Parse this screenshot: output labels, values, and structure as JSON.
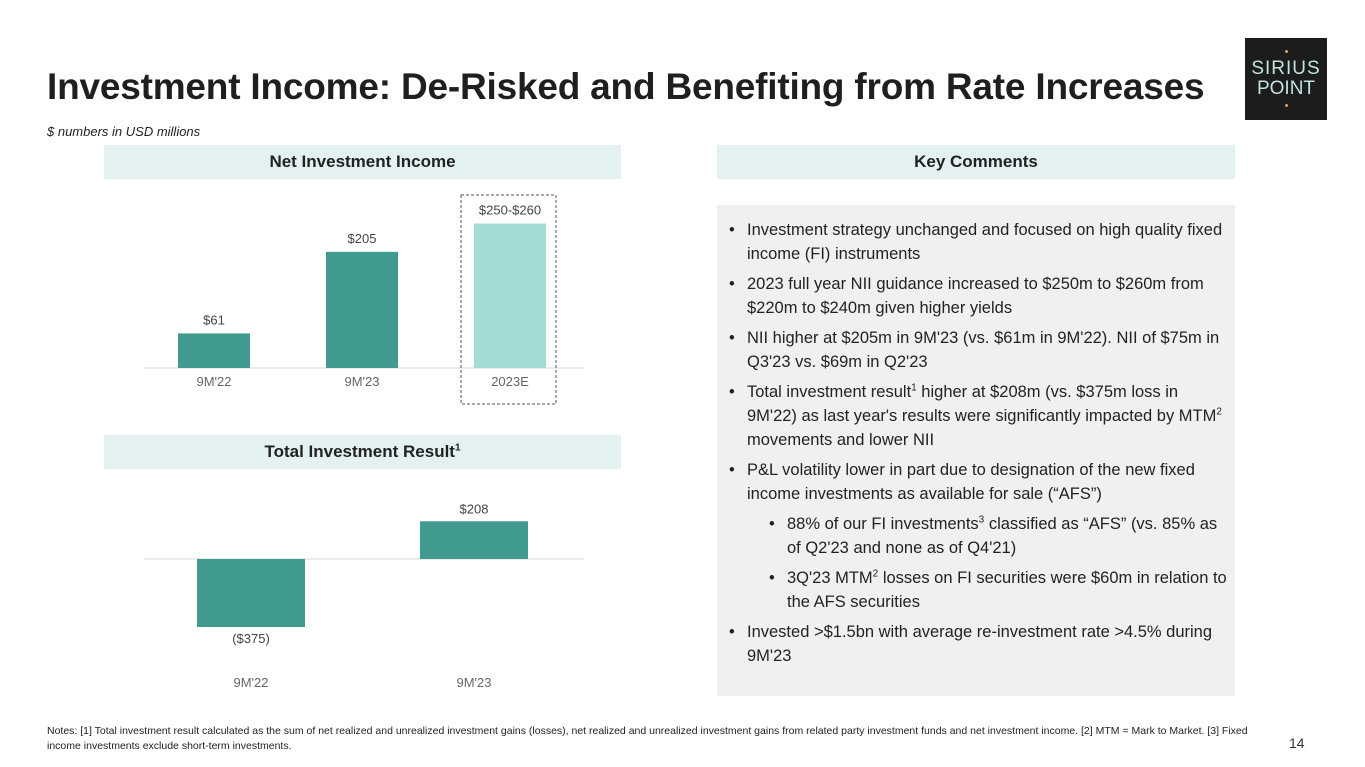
{
  "header": {
    "title": "Investment Income: De-Risked and Benefiting from Rate Increases",
    "subtitle": "$ numbers in USD millions"
  },
  "logo": {
    "line1": "SIRIUS",
    "line2": "POINT"
  },
  "nii_section": {
    "title": "Net Investment Income"
  },
  "tir_section": {
    "title": "Total Investment Result",
    "sup": "1"
  },
  "comments_section": {
    "title": "Key Comments"
  },
  "chart_data": [
    {
      "type": "bar",
      "title": "Net Investment Income",
      "categories": [
        "9M'22",
        "9M'23",
        "2023E"
      ],
      "values": [
        61,
        205,
        255
      ],
      "labels": [
        "$61",
        "$205",
        "$250-$260"
      ],
      "colors": [
        "#419a8e",
        "#419a8e",
        "#a5dbd5"
      ],
      "ylim": [
        0,
        270
      ]
    },
    {
      "type": "bar",
      "title": "Total Investment Result",
      "categories": [
        "9M'22",
        "9M'23"
      ],
      "values": [
        -375,
        208
      ],
      "labels": [
        "($375)",
        "$208"
      ],
      "colors": [
        "#419a8e",
        "#419a8e"
      ],
      "ylim": [
        -375,
        208
      ]
    }
  ],
  "comments": [
    {
      "level": 1,
      "text": "Investment strategy unchanged and focused on high quality fixed income (FI) instruments"
    },
    {
      "level": 1,
      "text": "2023 full year NII guidance increased to $250m to $260m from $220m to $240m given higher yields"
    },
    {
      "level": 1,
      "text": "NII higher at $205m in 9M'23 (vs. $61m in 9M'22). NII of $75m in Q3'23 vs. $69m in Q2'23"
    },
    {
      "level": 1,
      "segments": [
        {
          "text": "Total investment result"
        },
        {
          "sup": "1"
        },
        {
          "text": " higher at $208m (vs. $375m loss in 9M'22) as last year's results were significantly impacted by MTM"
        },
        {
          "sup": "2"
        },
        {
          "text": " movements and lower NII"
        }
      ]
    },
    {
      "level": 1,
      "text": "P&L volatility lower in part due to designation of the new fixed income investments as available for sale (“AFS”)"
    },
    {
      "level": 2,
      "segments": [
        {
          "text": "88% of our FI investments"
        },
        {
          "sup": "3"
        },
        {
          "text": " classified as “AFS” (vs. 85% as of Q2'23 and none as of Q4'21)"
        }
      ]
    },
    {
      "level": 2,
      "segments": [
        {
          "text": "3Q'23 MTM"
        },
        {
          "sup": "2"
        },
        {
          "text": " losses on FI securities were $60m in relation to the AFS securities"
        }
      ]
    },
    {
      "level": 1,
      "text": "Invested >$1.5bn with average re-investment rate >4.5% during 9M'23"
    }
  ],
  "notes": "Notes: [1] Total investment result calculated as the sum of net realized and unrealized investment gains (losses), net realized and unrealized investment gains from related party investment funds and net investment income. [2] MTM = Mark to Market. [3] Fixed income investments exclude short-term investments.",
  "page_number": "14"
}
